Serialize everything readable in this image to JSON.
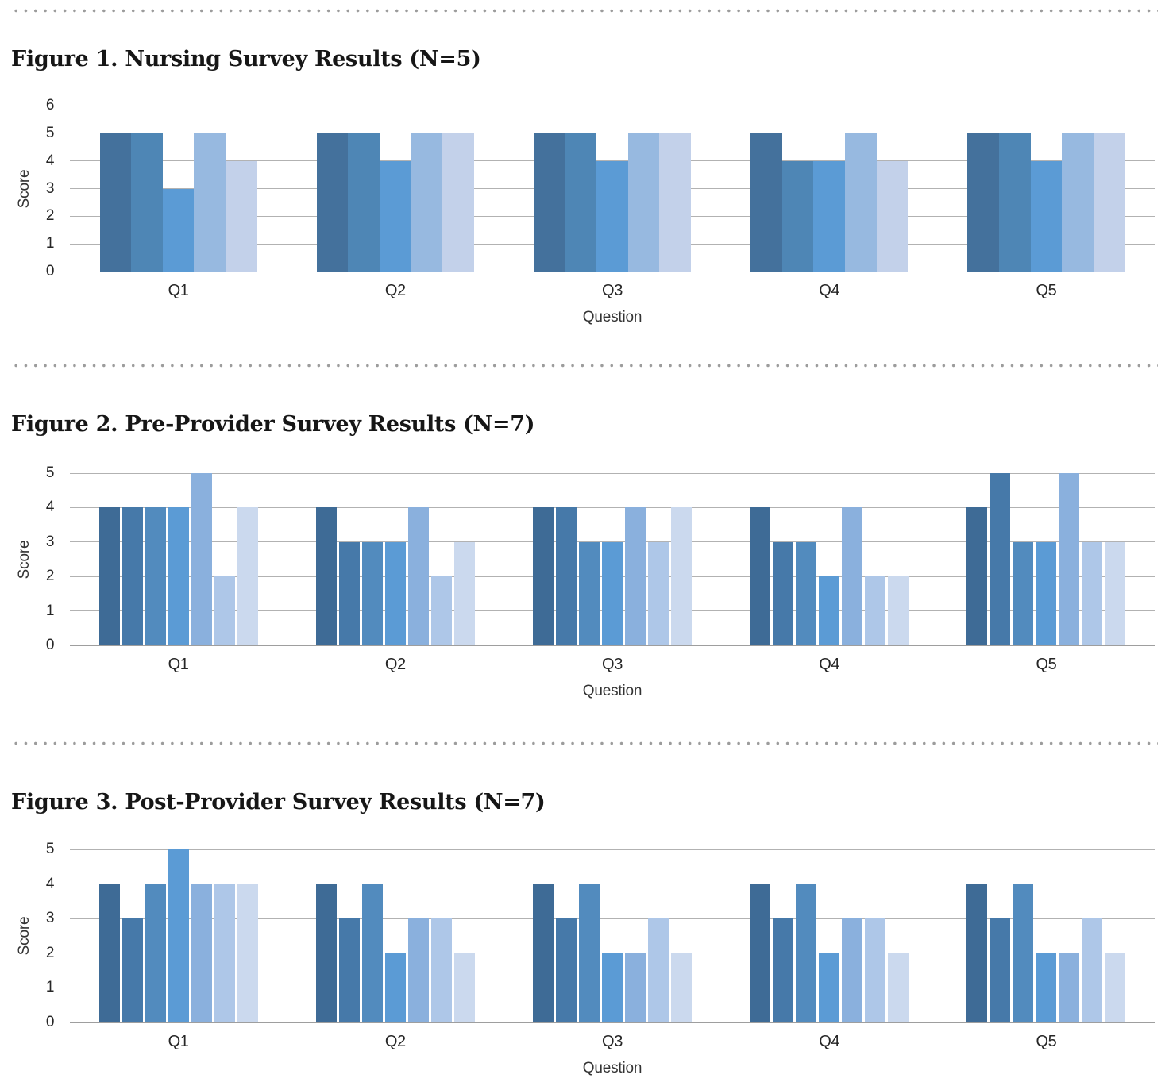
{
  "separator": {
    "style": "dotted-line",
    "color": "#9c9c9c"
  },
  "chart_data": [
    {
      "type": "bar",
      "title": "Figure 1. Nursing Survey Results (N=5)",
      "xlabel": "Question",
      "ylabel": "Score",
      "ylim": [
        0,
        6
      ],
      "yticks": [
        0,
        1,
        2,
        3,
        4,
        5,
        6
      ],
      "categories": [
        "Q1",
        "Q2",
        "Q3",
        "Q4",
        "Q5"
      ],
      "grid": true,
      "legend_position": "none",
      "bar_colors": [
        "#44719C",
        "#4E86B5",
        "#5B9BD5",
        "#97B9E0",
        "#C3D1EA"
      ],
      "groups": [
        {
          "category": "Q1",
          "values": [
            5,
            5,
            3,
            5,
            4
          ]
        },
        {
          "category": "Q2",
          "values": [
            5,
            5,
            4,
            5,
            5
          ]
        },
        {
          "category": "Q3",
          "values": [
            5,
            5,
            4,
            5,
            5
          ]
        },
        {
          "category": "Q4",
          "values": [
            5,
            4,
            4,
            5,
            4
          ]
        },
        {
          "category": "Q5",
          "values": [
            5,
            5,
            4,
            5,
            5
          ]
        }
      ]
    },
    {
      "type": "bar",
      "title": "Figure 2. Pre-Provider Survey Results (N=7)",
      "xlabel": "Question",
      "ylabel": "Score",
      "ylim": [
        0,
        5
      ],
      "yticks": [
        0,
        1,
        2,
        3,
        4,
        5
      ],
      "categories": [
        "Q1",
        "Q2",
        "Q3",
        "Q4",
        "Q5"
      ],
      "grid": true,
      "legend_position": "none",
      "bar_colors": [
        "#3E6B96",
        "#4679A9",
        "#528BBE",
        "#5B9BD5",
        "#8AB0DD",
        "#AEC7E8",
        "#CBD9EE"
      ],
      "groups": [
        {
          "category": "Q1",
          "values": [
            4,
            4,
            4,
            4,
            5,
            2,
            4
          ]
        },
        {
          "category": "Q2",
          "values": [
            4,
            3,
            3,
            3,
            4,
            2,
            3
          ]
        },
        {
          "category": "Q3",
          "values": [
            4,
            4,
            3,
            3,
            4,
            3,
            4
          ]
        },
        {
          "category": "Q4",
          "values": [
            4,
            3,
            3,
            2,
            4,
            2,
            2
          ]
        },
        {
          "category": "Q5",
          "values": [
            4,
            5,
            3,
            3,
            5,
            3,
            3
          ]
        }
      ]
    },
    {
      "type": "bar",
      "title": "Figure 3. Post-Provider Survey Results (N=7)",
      "xlabel": "Question",
      "ylabel": "Score",
      "ylim": [
        0,
        5
      ],
      "yticks": [
        0,
        1,
        2,
        3,
        4,
        5
      ],
      "categories": [
        "Q1",
        "Q2",
        "Q3",
        "Q4",
        "Q5"
      ],
      "grid": true,
      "legend_position": "none",
      "bar_colors": [
        "#3E6B96",
        "#4679A9",
        "#528BBE",
        "#5B9BD5",
        "#8AB0DD",
        "#AEC7E8",
        "#CBD9EE"
      ],
      "groups": [
        {
          "category": "Q1",
          "values": [
            4,
            3,
            4,
            5,
            4,
            4,
            4
          ]
        },
        {
          "category": "Q2",
          "values": [
            4,
            3,
            4,
            2,
            3,
            3,
            2
          ]
        },
        {
          "category": "Q3",
          "values": [
            4,
            3,
            4,
            2,
            2,
            3,
            2
          ]
        },
        {
          "category": "Q4",
          "values": [
            4,
            3,
            4,
            2,
            3,
            3,
            2
          ]
        },
        {
          "category": "Q5",
          "values": [
            4,
            3,
            4,
            2,
            2,
            3,
            2
          ]
        }
      ]
    }
  ]
}
